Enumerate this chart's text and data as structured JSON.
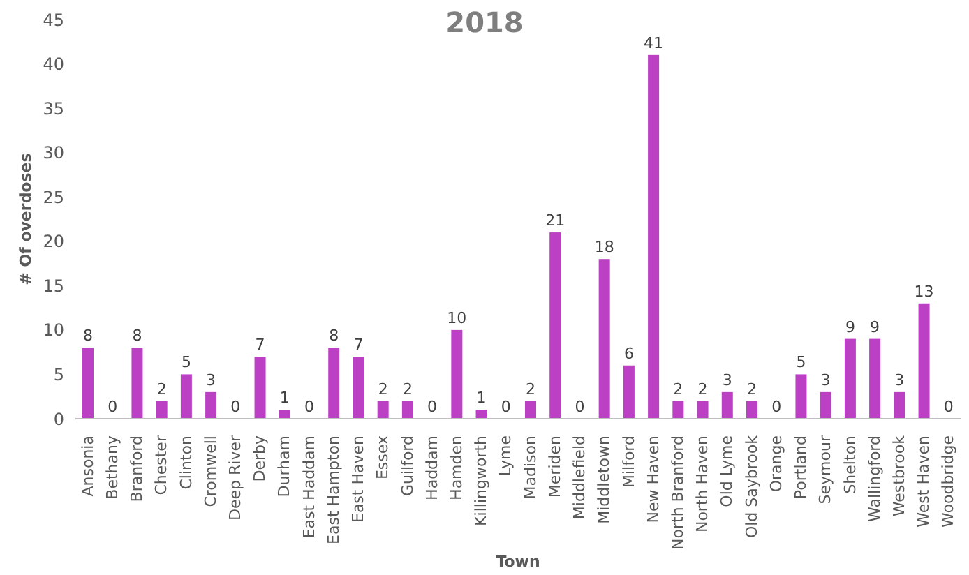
{
  "chart_data": {
    "type": "bar",
    "title": "2018",
    "xlabel": "Town",
    "ylabel": "# Of overdoses",
    "categories": [
      "Ansonia",
      "Bethany",
      "Branford",
      "Chester",
      "Clinton",
      "Cromwell",
      "Deep River",
      "Derby",
      "Durham",
      "East Haddam",
      "East Hampton",
      "East Haven",
      "Essex",
      "Guilford",
      "Haddam",
      "Hamden",
      "Killingworth",
      "Lyme",
      "Madison",
      "Meriden",
      "Middlefield",
      "Middletown",
      "Milford",
      "New Haven",
      "North Branford",
      "North Haven",
      "Old Lyme",
      "Old Saybrook",
      "Orange",
      "Portland",
      "Seymour",
      "Shelton",
      "Wallingford",
      "Westbrook",
      "West Haven",
      "Woodbridge"
    ],
    "values": [
      8,
      0,
      8,
      2,
      5,
      3,
      0,
      7,
      1,
      0,
      8,
      7,
      2,
      2,
      0,
      10,
      1,
      0,
      2,
      21,
      0,
      18,
      6,
      41,
      2,
      2,
      3,
      2,
      0,
      5,
      3,
      9,
      9,
      3,
      13,
      0
    ],
    "color": "#bb40c4",
    "ylim": [
      0,
      45
    ],
    "yticks": [
      0,
      5,
      10,
      15,
      20,
      25,
      30,
      35,
      40,
      45
    ],
    "grid": false,
    "data_labels": true
  }
}
